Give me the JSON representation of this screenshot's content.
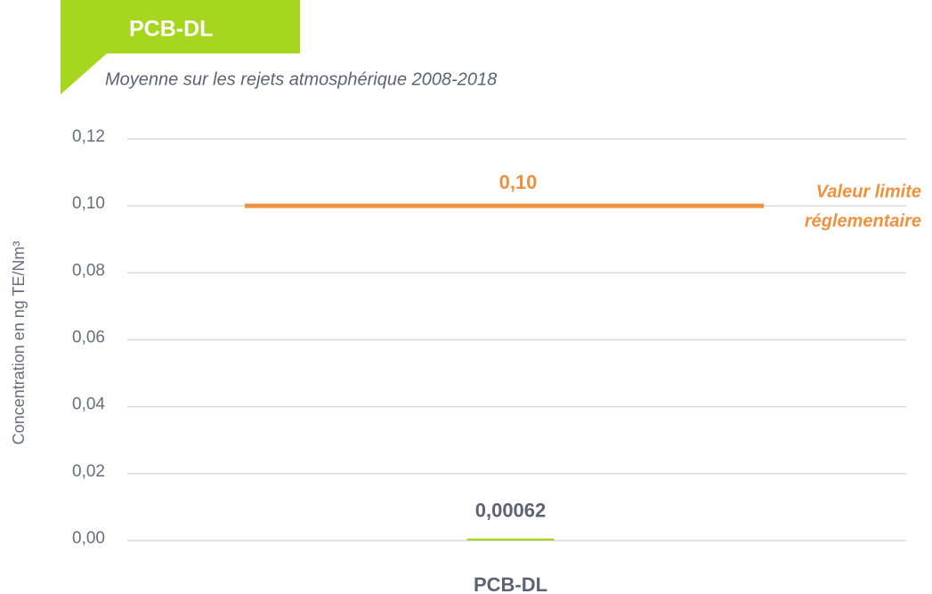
{
  "chart_data": {
    "type": "bar",
    "title": "PCB-DL",
    "subtitle": "Moyenne sur les rejets atmosphérique 2008-2018",
    "y_label": "Concentration en ng TE/Nm³",
    "categories": [
      "PCB-DL"
    ],
    "values": [
      0.00062
    ],
    "value_labels": [
      "0,00062"
    ],
    "color": "#a6d61e",
    "ylim": [
      0,
      0.12
    ],
    "yticks": [
      {
        "value": 0,
        "label": "0,00"
      },
      {
        "value": 0.02,
        "label": "0,02"
      },
      {
        "value": 0.04,
        "label": "0,04"
      },
      {
        "value": 0.06,
        "label": "0,06"
      },
      {
        "value": 0.08,
        "label": "0,08"
      },
      {
        "value": 0.1,
        "label": "0,10"
      },
      {
        "value": 0.12,
        "label": "0,12"
      }
    ],
    "grid": true,
    "reference_line": {
      "value": 0.1,
      "value_label": "0,10",
      "label_lines": [
        "Valeur limite",
        "réglementaire"
      ],
      "color": "#f0913e"
    }
  }
}
